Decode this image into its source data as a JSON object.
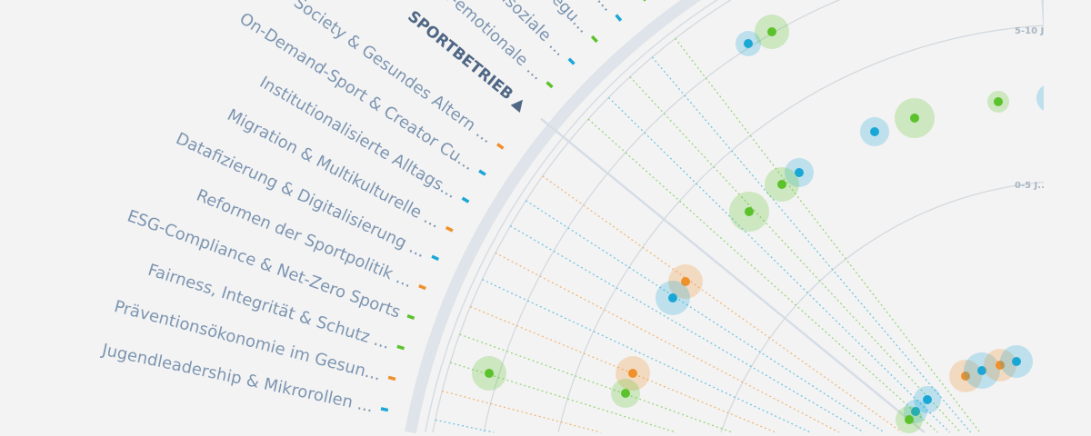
{
  "colors": {
    "green": "#5cc22b",
    "cyan": "#1aa7d6",
    "orange": "#f0902a",
    "arc": "#dfe4ea",
    "ring": "#d3d9df",
    "label": "#7d95b1",
    "category": "#4f6785"
  },
  "category": {
    "label": "SPORTBETRIEB ▲"
  },
  "rings": [
    "5-10 J...",
    "0-5 J..."
  ],
  "trends": [
    {
      "label": "n...",
      "color": "green"
    },
    {
      "label": "ves ...",
      "color": "cyan"
    },
    {
      "label": "Bewegu...",
      "color": "green"
    },
    {
      "label": "parasoziale ...",
      "color": "cyan"
    },
    {
      "label": "ukus auf Sozial-emotionale ...",
      "color": "green"
    },
    {
      "label": "Silver Society & Gesundes Altern ...",
      "color": "orange"
    },
    {
      "label": "On-Demand-Sport & Creator Cu...",
      "color": "cyan"
    },
    {
      "label": "Institutionalisierte Alltags...",
      "color": "cyan"
    },
    {
      "label": "Migration & Multikulturelle ...",
      "color": "orange"
    },
    {
      "label": "Datafizierung & Digitalisierung ...",
      "color": "cyan"
    },
    {
      "label": "Reformen der Sportpolitik ...",
      "color": "orange"
    },
    {
      "label": "ESG-Compliance & Net-Zero Sports",
      "color": "green"
    },
    {
      "label": "Fairness, Integrität & Schutz ...",
      "color": "green"
    },
    {
      "label": "Präventionsökonomie im Gesun...",
      "color": "orange"
    },
    {
      "label": "Jugendleadership & Mikrorollen ...",
      "color": "cyan"
    }
  ]
}
